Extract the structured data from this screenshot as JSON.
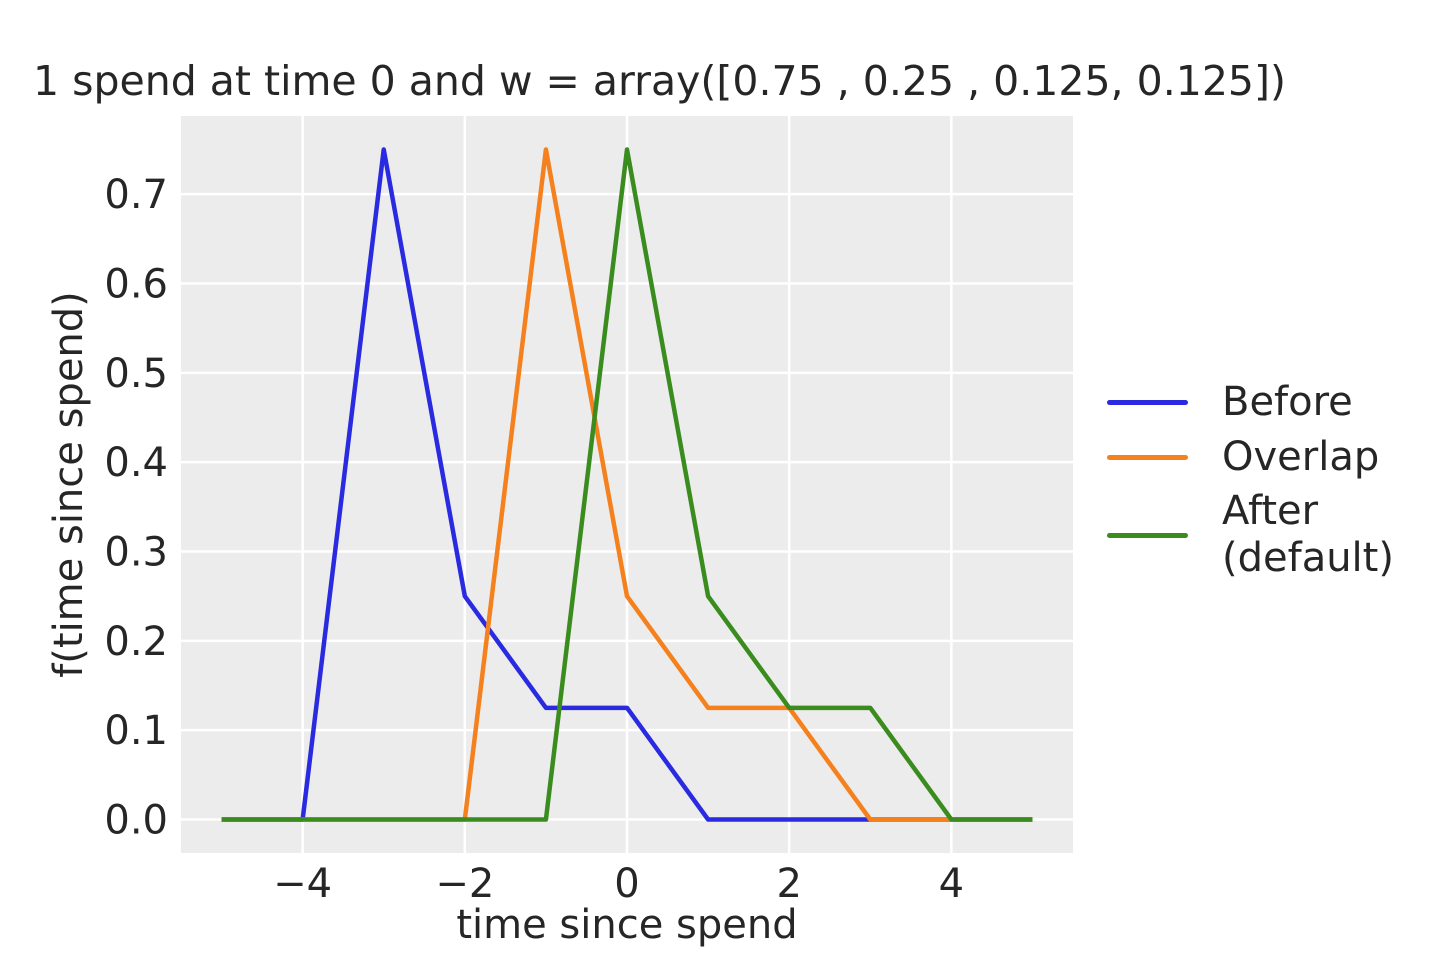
{
  "styles": {
    "page_background": "#ffffff",
    "plot_background": "#ececec",
    "grid_color": "#ffffff",
    "text_color": "#262626"
  },
  "chart_data": {
    "type": "line",
    "title": "1 spend at time 0 and w = array([0.75 , 0.25 , 0.125, 0.125])",
    "xlabel": "time since spend",
    "ylabel": "f(time since spend)",
    "xlim": [
      -5.5,
      5.5
    ],
    "ylim": [
      -0.0375,
      0.7875
    ],
    "xticks": [
      -4,
      -2,
      0,
      2,
      4
    ],
    "xtick_labels": [
      "−4",
      "−2",
      "0",
      "2",
      "4"
    ],
    "yticks": [
      0.0,
      0.1,
      0.2,
      0.3,
      0.4,
      0.5,
      0.6,
      0.7
    ],
    "ytick_labels": [
      "0.0",
      "0.1",
      "0.2",
      "0.3",
      "0.4",
      "0.5",
      "0.6",
      "0.7"
    ],
    "grid": true,
    "legend_position": "outside-center-right",
    "series": [
      {
        "name": "Before",
        "color": "#2a2ae0",
        "points": [
          [
            -5,
            0
          ],
          [
            -4,
            0
          ],
          [
            -3,
            0.75
          ],
          [
            -2,
            0.25
          ],
          [
            -1,
            0.125
          ],
          [
            0,
            0.125
          ],
          [
            1,
            0
          ],
          [
            5,
            0
          ]
        ]
      },
      {
        "name": "Overlap",
        "color": "#f5811e",
        "points": [
          [
            -5,
            0
          ],
          [
            -2,
            0
          ],
          [
            -1,
            0.75
          ],
          [
            0,
            0.25
          ],
          [
            1,
            0.125
          ],
          [
            2,
            0.125
          ],
          [
            3,
            0
          ],
          [
            5,
            0
          ]
        ]
      },
      {
        "name": "After\n(default)",
        "color": "#3a8c1e",
        "points": [
          [
            -5,
            0
          ],
          [
            -1,
            0
          ],
          [
            0,
            0.75
          ],
          [
            1,
            0.25
          ],
          [
            2,
            0.125
          ],
          [
            3,
            0.125
          ],
          [
            4,
            0
          ],
          [
            5,
            0
          ]
        ]
      }
    ]
  }
}
